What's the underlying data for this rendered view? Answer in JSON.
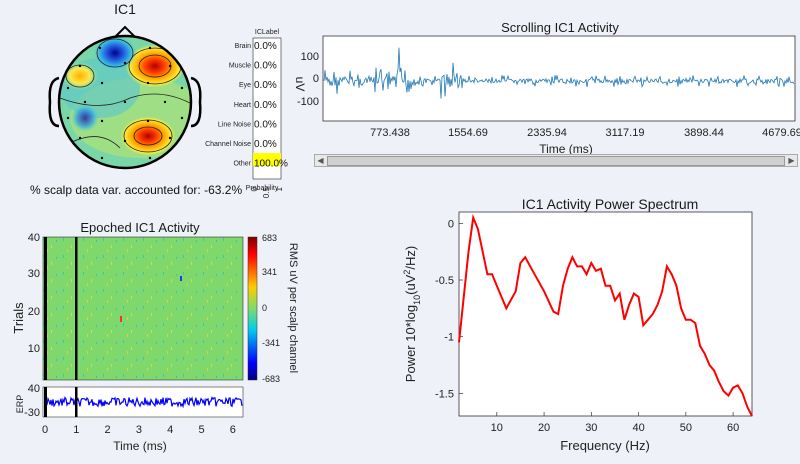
{
  "topo": {
    "title": "IC1",
    "variance_text": "% scalp data var. accounted for: -63.2%"
  },
  "iclabel": {
    "title": "ICLabel",
    "xlabel": "Probability",
    "ticks": [
      "0",
      "0.5",
      "1"
    ],
    "rows": [
      {
        "label": "Brain",
        "value": "0.0%"
      },
      {
        "label": "Muscle",
        "value": "0.0%"
      },
      {
        "label": "Eye",
        "value": "0.0%"
      },
      {
        "label": "Heart",
        "value": "0.0%"
      },
      {
        "label": "Line Noise",
        "value": "0.0%"
      },
      {
        "label": "Channel Noise",
        "value": "0.0%"
      },
      {
        "label": "Other",
        "value": "100.0%",
        "probability": 1.0
      }
    ],
    "highlight_color": "#ffff00"
  },
  "scrolling": {
    "title": "Scrolling IC1 Activity",
    "ylabel": "uV",
    "xlabel": "Time (ms)",
    "yticks": [
      "100",
      "0",
      "-100"
    ],
    "xticks": [
      "773.438",
      "1554.69",
      "2335.94",
      "3117.19",
      "3898.44",
      "4679.69"
    ],
    "line_color": "#1f77b4"
  },
  "epoched": {
    "title": "Epoched IC1 Activity",
    "ylabel": "Trials",
    "yticks": [
      "40",
      "30",
      "20",
      "10"
    ],
    "colorbar_label": "RMS uV per scalp channel",
    "colorbar_ticks": [
      "683",
      "341",
      "0",
      "-341",
      "-683"
    ],
    "erp_label": "ERP",
    "erp_yticks": [
      "40",
      "-30"
    ],
    "xlabel": "Time (ms)",
    "xticks": [
      "0",
      "1",
      "2",
      "3",
      "4",
      "5",
      "6"
    ],
    "erp_color": "#0000ff"
  },
  "spectrum": {
    "title": "IC1 Activity Power Spectrum",
    "ylabel": "Power 10*log10(uV2/Hz)",
    "xlabel": "Frequency (Hz)",
    "yticks": [
      "0",
      "-0.5",
      "-1",
      "-1.5"
    ],
    "xticks": [
      "10",
      "20",
      "30",
      "40",
      "50",
      "60"
    ],
    "line_color": "#ff0000"
  },
  "chart_data": [
    {
      "type": "line",
      "title": "IC1 Activity Power Spectrum",
      "xlabel": "Frequency (Hz)",
      "ylabel": "Power 10*log10(uV2/Hz)",
      "xlim": [
        2,
        64
      ],
      "ylim": [
        -1.7,
        0.1
      ],
      "x": [
        2,
        4,
        5,
        6,
        8,
        9,
        10,
        12,
        14,
        15,
        16,
        18,
        20,
        22,
        23,
        24,
        25,
        26,
        27,
        28,
        29,
        30,
        31,
        32,
        33,
        34,
        35,
        36,
        37,
        38,
        39,
        40,
        41,
        42,
        43,
        44,
        45,
        46,
        47,
        48,
        49,
        50,
        51,
        52,
        53,
        54,
        55,
        56,
        57,
        58,
        59,
        60,
        61,
        62,
        63,
        64
      ],
      "y": [
        -1.05,
        -0.25,
        0.05,
        -0.05,
        -0.45,
        -0.45,
        -0.55,
        -0.75,
        -0.6,
        -0.35,
        -0.3,
        -0.45,
        -0.6,
        -0.78,
        -0.8,
        -0.55,
        -0.4,
        -0.3,
        -0.38,
        -0.38,
        -0.45,
        -0.35,
        -0.42,
        -0.4,
        -0.55,
        -0.55,
        -0.68,
        -0.62,
        -0.85,
        -0.72,
        -0.62,
        -0.65,
        -0.9,
        -0.85,
        -0.8,
        -0.72,
        -0.6,
        -0.38,
        -0.45,
        -0.55,
        -0.75,
        -0.85,
        -0.85,
        -0.88,
        -1.08,
        -1.15,
        -1.25,
        -1.3,
        -1.4,
        -1.48,
        -1.52,
        -1.45,
        -1.43,
        -1.5,
        -1.62,
        -1.7
      ]
    }
  ]
}
